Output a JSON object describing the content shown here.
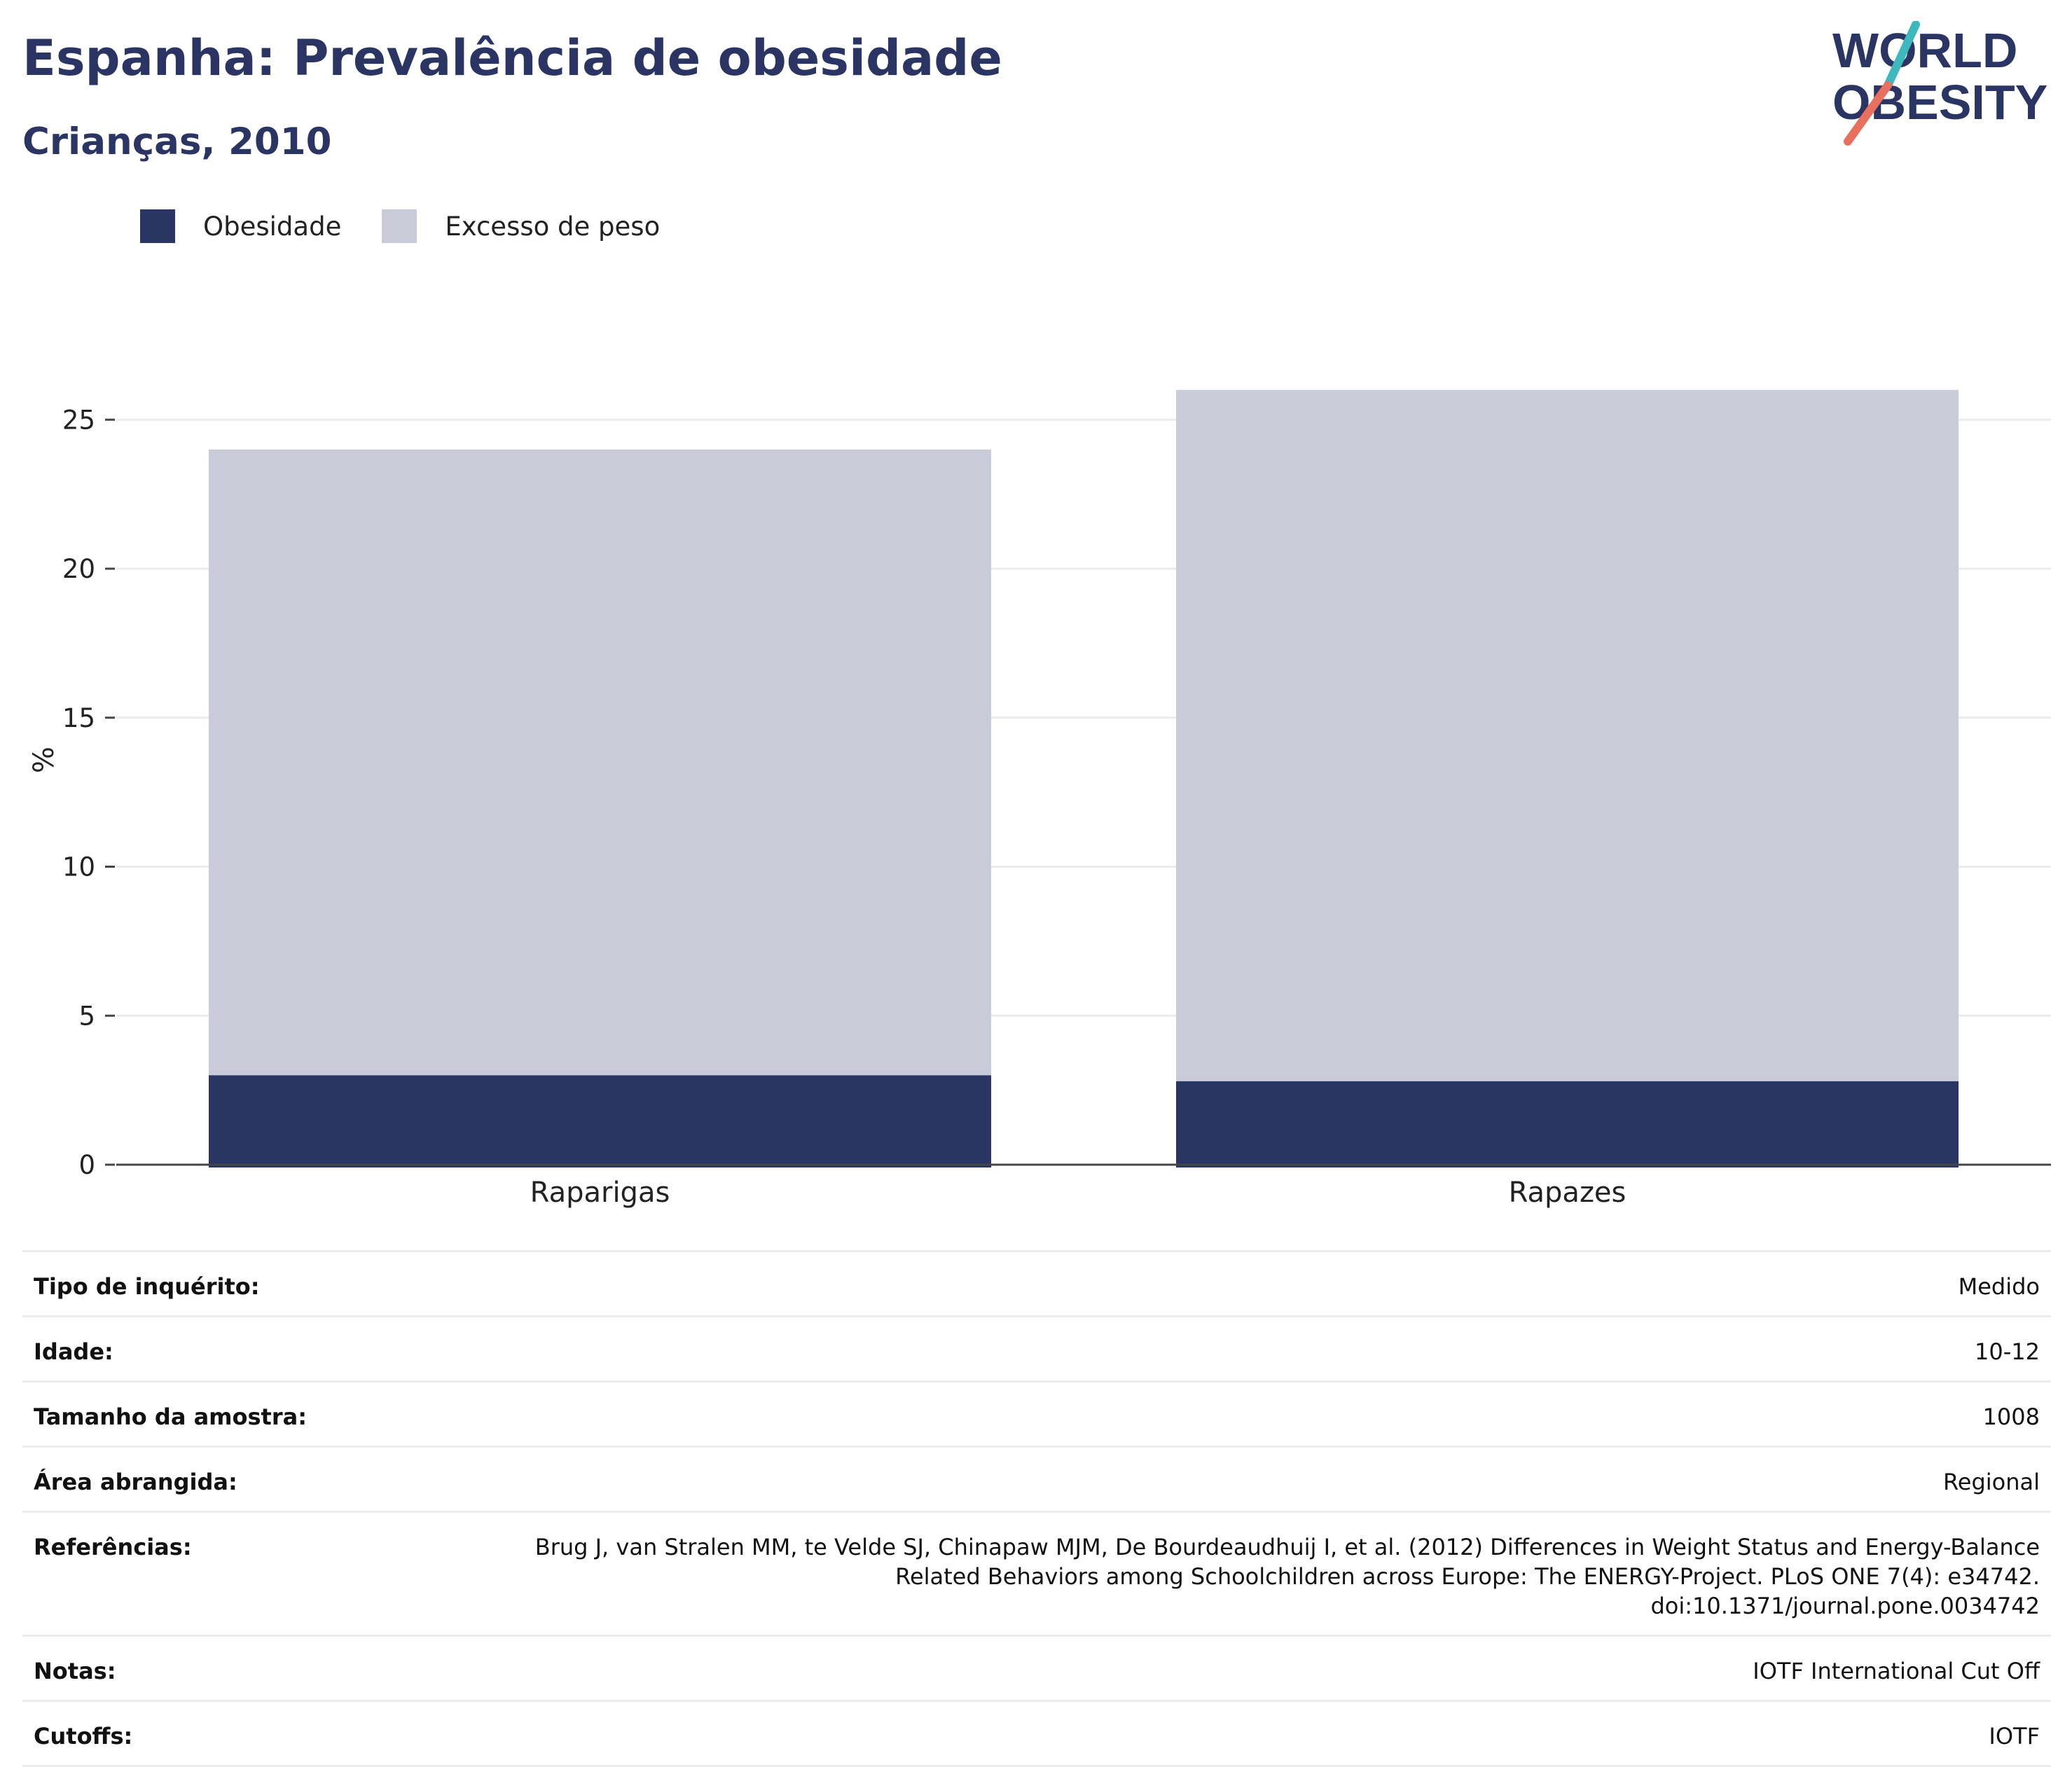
{
  "header": {
    "title": "Espanha: Prevalência de obesidade",
    "subtitle": "Crianças, 2010"
  },
  "logo": {
    "line1": "WORLD",
    "line2": "OBESITY"
  },
  "colors": {
    "obesity": "#2b3563",
    "overweight": "#c9ccd8",
    "text": "#2a3563",
    "logo_teal": "#3fb8bd",
    "logo_coral": "#e8705e"
  },
  "chart_data": {
    "type": "bar",
    "stacked": true,
    "categories": [
      "Raparigas",
      "Rapazes"
    ],
    "series": [
      {
        "name": "Obesidade",
        "values": [
          3.0,
          2.8
        ]
      },
      {
        "name": "Excesso de peso",
        "values": [
          24.0,
          26.0
        ]
      }
    ],
    "xlabel": "",
    "ylabel": "%",
    "ylim": [
      0,
      27
    ],
    "yticks": [
      0,
      5,
      10,
      15,
      20,
      25
    ],
    "grid": true,
    "legend_position": "top-left"
  },
  "info_table": [
    {
      "label": "Tipo de inquérito:",
      "value": "Medido"
    },
    {
      "label": "Idade:",
      "value": "10-12"
    },
    {
      "label": "Tamanho da amostra:",
      "value": "1008"
    },
    {
      "label": "Área abrangida:",
      "value": "Regional"
    },
    {
      "label": "Referências:",
      "value": "Brug J, van Stralen MM, te Velde SJ, Chinapaw MJM, De Bourdeaudhuij I, et al. (2012) Differences in Weight Status and Energy-Balance Related Behaviors among Schoolchildren across Europe: The ENERGY-Project. PLoS ONE 7(4): e34742. doi:10.1371/journal.pone.0034742"
    },
    {
      "label": "Notas:",
      "value": "IOTF International Cut Off"
    },
    {
      "label": "Cutoffs:",
      "value": "IOTF"
    }
  ]
}
